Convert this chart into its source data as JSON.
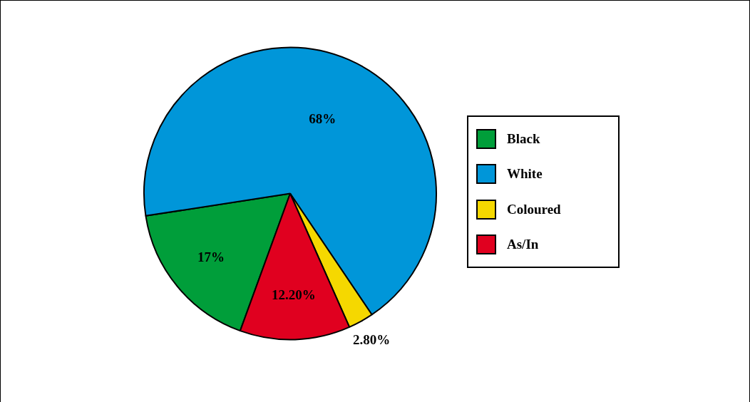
{
  "chart_data": {
    "type": "pie",
    "categories": [
      "Black",
      "White",
      "Coloured",
      "As/In"
    ],
    "values": [
      17,
      68,
      2.8,
      12.2
    ],
    "colors": [
      "#009e3a",
      "#0096d9",
      "#f5d800",
      "#e0001f"
    ],
    "value_labels": [
      "17%",
      "68%",
      "2.80%",
      "12.20%"
    ],
    "legend": "right"
  }
}
